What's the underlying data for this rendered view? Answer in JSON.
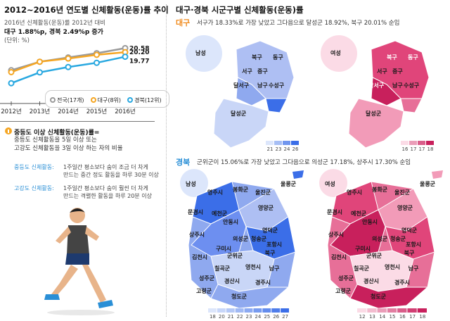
{
  "left": {
    "title": "2012~2016년 연도별 신체활동(운동)률 추이",
    "subtitle": "2016년 신체활동(운동)률 2012년 대비",
    "highlight": "대구 1.88%p, 경북 2.49%p 증가",
    "unit": "(단위: %)",
    "definition_title": "중등도 이상 신체활동(운동)률=",
    "definition_lines": [
      "중등도 신체활동을 5일 이상 또는",
      "고강도 신체활동을 3일 이상 하는 자의 비율"
    ],
    "moderate_label": "중등도 신체활동:",
    "moderate_desc": [
      "1주일간 평소보다 숨이 조금 더 차게",
      "만드는 중간 정도 활동을 하루 30분 이상"
    ],
    "vigorous_label": "고강도 신체활동:",
    "vigorous_desc": [
      "1주일간 평소보다 숨이 훨씬 더 차게",
      "만드는 격렬한 활동을 하루 20분 이상"
    ]
  },
  "chart_data": {
    "type": "line",
    "x": [
      "2012년",
      "2013년",
      "2014년",
      "2015년",
      "2016년"
    ],
    "series": [
      {
        "name": "전국(17개)",
        "color": "#9a9a9a",
        "values": [
          18.5,
          19.3,
          19.7,
          20.1,
          20.58
        ]
      },
      {
        "name": "대구(8위)",
        "color": "#f5a623",
        "values": [
          18.32,
          19.3,
          19.6,
          19.95,
          20.2
        ]
      },
      {
        "name": "경북(12위)",
        "color": "#29a8e0",
        "values": [
          17.28,
          18.3,
          18.8,
          19.2,
          19.77
        ]
      }
    ],
    "end_labels": [
      "20.58",
      "20.20",
      "19.77"
    ],
    "ylim": [
      16.5,
      21
    ],
    "legend_position": "bottom-right"
  },
  "right": {
    "title": "대구·경북 시군구별 신체활동(운동)률",
    "daegu_tag": "대구",
    "daegu_desc": "서구가 18.33%로 가장 낮았고 그다음으로 달성군 18.92%, 북구 20.01% 순임",
    "gb_tag": "경북",
    "gb_desc": "군위군이 15.06%로 가장 낮았고 그다음으로 의성군 17.18%, 상주시 17.30% 순임",
    "male": "남성",
    "female": "여성",
    "colors": {
      "blue": "#3b6ee8",
      "pink": "#e0457a",
      "daegu_tag": "#f08a1c",
      "gb_tag": "#2a8fd6"
    },
    "daegu_scale_m": [
      "21",
      "23",
      "24",
      "26"
    ],
    "daegu_scale_f": [
      "16",
      "17",
      "17",
      "18"
    ],
    "gb_scale_m": [
      "18",
      "20",
      "21",
      "22",
      "23",
      "24",
      "25",
      "26",
      "27"
    ],
    "gb_scale_f": [
      "12",
      "13",
      "14",
      "15",
      "16",
      "17",
      "18"
    ],
    "daegu_districts": [
      "북구",
      "동구",
      "서구",
      "중구",
      "달서구",
      "남구",
      "수성구",
      "달성군"
    ],
    "gb_districts": [
      "울릉군",
      "영주시",
      "봉화군",
      "울진군",
      "문경시",
      "예천군",
      "영양군",
      "안동시",
      "상주시",
      "영덕군",
      "의성군",
      "청송군",
      "포항시",
      "군위군",
      "김천시",
      "구미시",
      "북구",
      "남구",
      "칠곡군",
      "영천시",
      "성주군",
      "고령군",
      "경산시",
      "경주시",
      "청도군"
    ]
  }
}
